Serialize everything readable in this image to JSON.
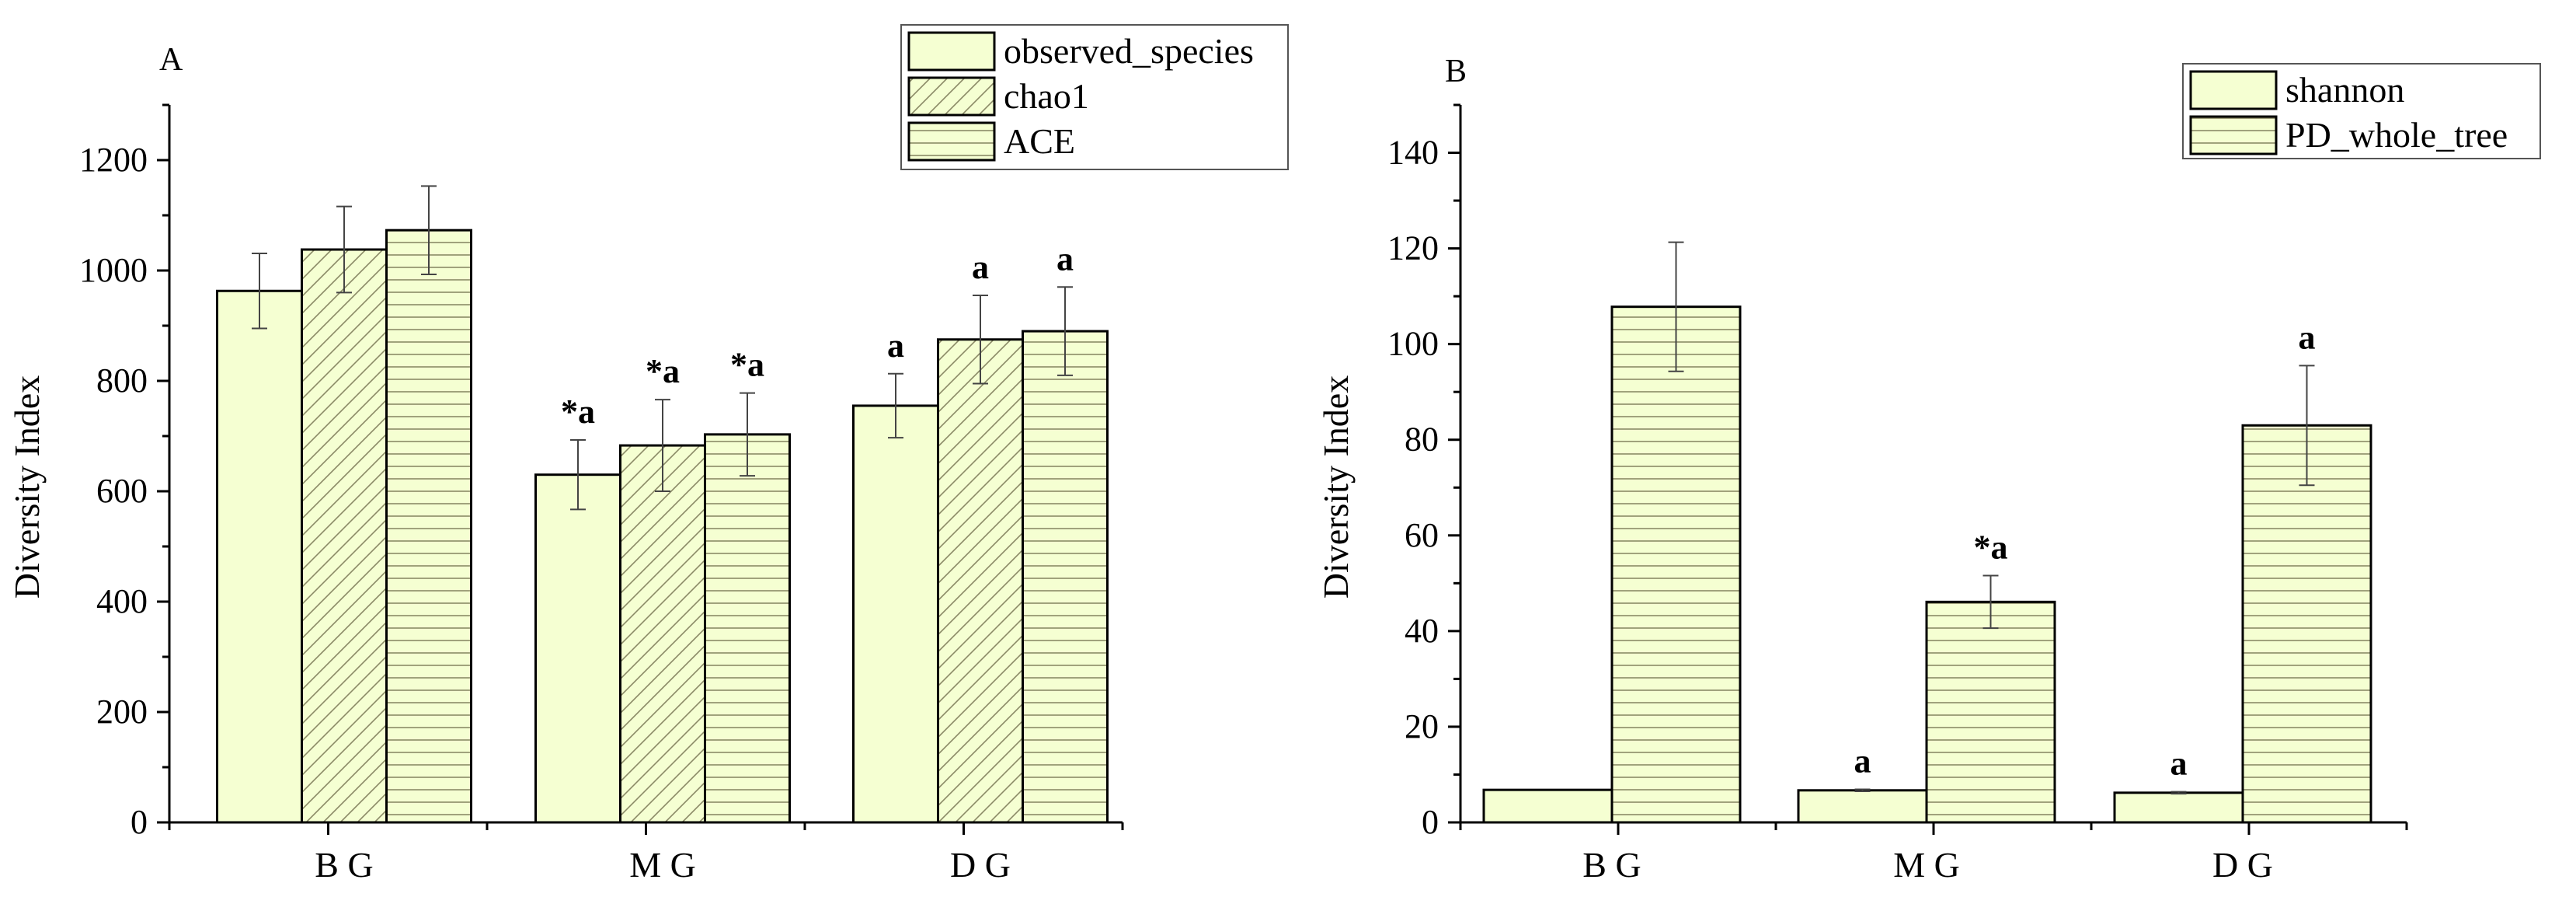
{
  "chart_data": [
    {
      "panel_label": "A",
      "type": "bar",
      "categories": [
        "B G",
        "M G",
        "D G"
      ],
      "ylabel": "Diversity Index",
      "ylim": [
        0,
        1300
      ],
      "yticks": [
        0,
        200,
        400,
        600,
        800,
        1000,
        1200
      ],
      "legend_position": "top-right",
      "series": [
        {
          "name": "observed_species",
          "pattern": "solid",
          "values": [
            963,
            630,
            755
          ],
          "errors": [
            68,
            63,
            58
          ],
          "annotations": [
            "",
            "*a",
            "a"
          ]
        },
        {
          "name": "chao1",
          "pattern": "diagonal",
          "values": [
            1038,
            683,
            875
          ],
          "errors": [
            78,
            83,
            80
          ],
          "annotations": [
            "",
            "*a",
            "a"
          ]
        },
        {
          "name": "ACE",
          "pattern": "horizontal",
          "values": [
            1073,
            703,
            890
          ],
          "errors": [
            80,
            75,
            80
          ],
          "annotations": [
            "",
            "*a",
            "a"
          ]
        }
      ]
    },
    {
      "panel_label": "B",
      "type": "bar",
      "categories": [
        "B G",
        "M G",
        "D G"
      ],
      "ylabel": "Diversity Index",
      "ylim": [
        0,
        150
      ],
      "yticks": [
        0,
        20,
        40,
        60,
        80,
        100,
        120,
        140
      ],
      "legend_position": "top-right",
      "series": [
        {
          "name": "shannon",
          "pattern": "solid",
          "values": [
            6.8,
            6.7,
            6.2
          ],
          "errors": [
            0,
            0.2,
            0.2
          ],
          "annotations": [
            "",
            "a",
            "a"
          ]
        },
        {
          "name": "PD_whole_tree",
          "pattern": "horizontal",
          "values": [
            107.8,
            46.1,
            83.0
          ],
          "errors": [
            13.5,
            5.5,
            12.5
          ],
          "annotations": [
            "",
            "*a",
            "a"
          ]
        }
      ]
    }
  ],
  "colors": {
    "bar_fill": "#f5ffd2",
    "hatch": "#9a9a6a",
    "error_bar": "#555555",
    "axis": "#000000"
  }
}
